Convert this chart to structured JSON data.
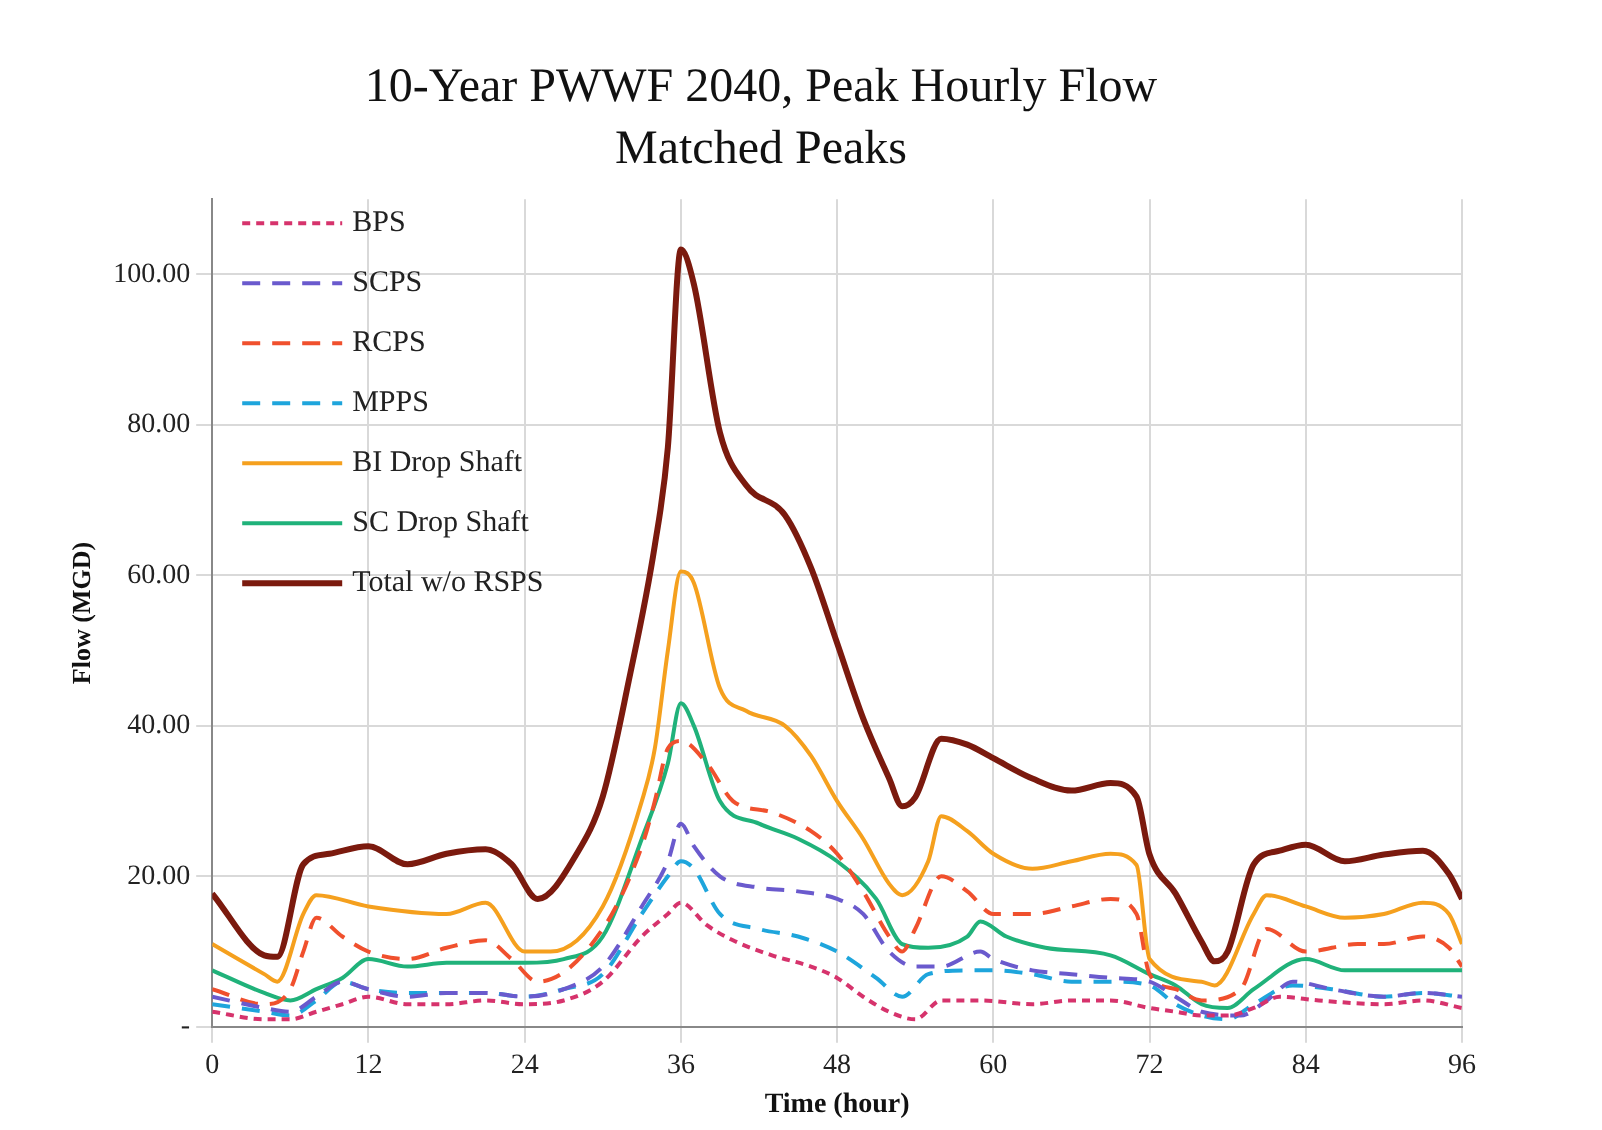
{
  "chart_data": {
    "type": "line",
    "title": "10-Year PWWF 2040, Peak Hourly Flow",
    "subtitle": "Matched Peaks",
    "xlabel": "Time (hour)",
    "ylabel": "Flow (MGD)",
    "xlim": [
      0,
      96
    ],
    "xticks": [
      0,
      12,
      24,
      36,
      48,
      60,
      72,
      84,
      96
    ],
    "ylim": [
      0,
      110
    ],
    "yticks": [
      {
        "value": 0,
        "label": "-"
      },
      {
        "value": 20,
        "label": "20.00"
      },
      {
        "value": 40,
        "label": "40.00"
      },
      {
        "value": 60,
        "label": "60.00"
      },
      {
        "value": 80,
        "label": "80.00"
      },
      {
        "value": 100,
        "label": "100.00"
      }
    ],
    "grid": true,
    "legend": "top left",
    "series": [
      {
        "name": "BPS",
        "color": "#d6336c",
        "line_style": "dotted",
        "x": [
          0,
          4,
          6,
          8,
          10,
          12,
          15,
          18,
          21,
          24,
          27,
          30,
          33,
          35,
          36,
          38,
          40,
          43,
          46,
          48,
          50,
          52,
          54,
          56,
          59,
          63,
          66,
          69,
          72,
          74,
          76,
          78,
          80,
          82,
          85,
          90,
          93,
          96
        ],
        "values": [
          2,
          1,
          1,
          2,
          3,
          4,
          3,
          3,
          3.5,
          3,
          3.5,
          6,
          12,
          15,
          16.5,
          13.5,
          11.5,
          9.5,
          8,
          6.5,
          4,
          2,
          1,
          3.5,
          3.5,
          3,
          3.5,
          3.5,
          2.5,
          2,
          1.5,
          1.5,
          2.5,
          4,
          3.5,
          3,
          3.5,
          2.5
        ]
      },
      {
        "name": "SCPS",
        "color": "#6a5acd",
        "line_style": "dashed",
        "x": [
          0,
          4,
          6,
          8,
          10,
          12,
          15,
          18,
          21,
          24,
          27,
          30,
          33,
          35,
          36,
          37,
          39,
          42,
          45,
          48,
          50,
          52,
          54,
          56,
          59,
          60,
          63,
          66,
          69,
          72,
          74,
          76,
          79,
          81,
          83,
          86,
          90,
          93,
          96
        ],
        "values": [
          4,
          2.5,
          2,
          4,
          6,
          5,
          4,
          4.5,
          4.5,
          4,
          5,
          8,
          16,
          22,
          27,
          24,
          20,
          18.5,
          18,
          17,
          15,
          10,
          8,
          8,
          10,
          9,
          7.5,
          7,
          6.5,
          6,
          4,
          2,
          1.5,
          3.5,
          6,
          5,
          4,
          4.5,
          4
        ]
      },
      {
        "name": "RCPS",
        "color": "#f0502d",
        "line_style": "dashed",
        "x": [
          0,
          4,
          6,
          7,
          8,
          10,
          12,
          15,
          18,
          21,
          23,
          25,
          30,
          33,
          34,
          35,
          36,
          38,
          40,
          43,
          46,
          48,
          50,
          52,
          53,
          54,
          56,
          58,
          60,
          63,
          66,
          69,
          71,
          72,
          74,
          76,
          79,
          81,
          84,
          88,
          90,
          93,
          95,
          96
        ],
        "values": [
          5,
          3,
          5,
          10,
          14.5,
          12,
          10,
          9,
          10.5,
          11.5,
          9,
          6,
          13,
          24,
          30,
          37,
          38,
          35,
          30,
          28.5,
          26,
          23,
          18,
          12,
          10,
          13,
          20,
          18,
          15,
          15,
          16,
          17,
          15,
          7,
          5,
          3.5,
          5,
          13,
          10,
          11,
          11,
          12,
          10.5,
          8
        ]
      },
      {
        "name": "MPPS",
        "color": "#1ea5dc",
        "line_style": "dashed",
        "x": [
          0,
          4,
          6,
          8,
          10,
          12,
          15,
          18,
          21,
          24,
          27,
          30,
          33,
          35,
          36,
          37,
          39,
          42,
          45,
          48,
          51,
          53,
          55,
          58,
          60,
          63,
          66,
          69,
          72,
          74,
          76,
          78,
          80,
          83,
          86,
          90,
          93,
          96
        ],
        "values": [
          3,
          2,
          1.5,
          3.5,
          6,
          5,
          4.5,
          4.5,
          4.5,
          4,
          5,
          7,
          15,
          20,
          22,
          21,
          15,
          13,
          12,
          10,
          6.5,
          4,
          7,
          7.5,
          7.5,
          7,
          6,
          6,
          5.5,
          3,
          1.5,
          1,
          3,
          5.5,
          5,
          4,
          4.5,
          4
        ]
      },
      {
        "name": "BI Drop Shaft",
        "color": "#f5a01e",
        "line_style": "solid",
        "x": [
          0,
          4,
          5,
          7,
          8,
          12,
          18,
          21,
          24,
          26,
          30,
          33,
          34,
          35,
          36,
          37,
          39,
          41,
          44,
          46,
          48,
          50,
          52,
          53,
          55,
          56,
          58,
          60,
          63,
          66,
          69,
          71,
          72,
          76,
          77,
          80,
          81,
          84,
          87,
          90,
          93,
          95,
          96
        ],
        "values": [
          11,
          7,
          6,
          15,
          17.5,
          16,
          15,
          16.5,
          10,
          10,
          16,
          30,
          37,
          50,
          60.5,
          59,
          45,
          42,
          40,
          36,
          30,
          25,
          19,
          17.5,
          22,
          28,
          26,
          23,
          21,
          22,
          23,
          21.5,
          9,
          6,
          5.5,
          15,
          17.5,
          16,
          14.5,
          15,
          16.5,
          15,
          11
        ]
      },
      {
        "name": "SC Drop Shaft",
        "color": "#20b27a",
        "line_style": "solid",
        "x": [
          0,
          4,
          6,
          8,
          10,
          12,
          15,
          18,
          24,
          27,
          30,
          33,
          35,
          36,
          37,
          39,
          42,
          45,
          48,
          51,
          53,
          55,
          58,
          59,
          61,
          64,
          69,
          72,
          74,
          76,
          78,
          80,
          84,
          87,
          90,
          93,
          96
        ],
        "values": [
          7.5,
          4.5,
          3.5,
          5,
          6.5,
          9,
          8,
          8.5,
          8.5,
          9,
          12,
          25,
          35,
          43,
          40,
          30,
          27,
          25,
          22,
          17,
          11,
          10.5,
          12,
          14,
          12,
          10.5,
          9.5,
          7,
          5.5,
          3,
          2.5,
          5,
          9,
          7.5,
          7.5,
          7.5,
          7.5
        ]
      },
      {
        "name": "Total w/o RSPS",
        "color": "#7b1a0e",
        "line_style": "solid",
        "x": [
          0,
          4,
          5,
          7,
          9,
          12,
          15,
          18,
          21,
          23,
          25,
          28,
          30,
          32,
          34,
          35,
          36,
          37,
          39,
          41,
          44,
          46,
          48,
          50,
          52,
          53,
          54,
          56,
          58,
          60,
          63,
          66,
          69,
          71,
          72,
          74,
          76,
          77,
          78,
          80,
          82,
          84,
          87,
          90,
          93,
          95,
          96
        ],
        "values": [
          17.7,
          9.5,
          9.3,
          21.6,
          23,
          24,
          21.6,
          23,
          23.6,
          21.6,
          17,
          23,
          30.6,
          46,
          64,
          77,
          103.3,
          98.7,
          79,
          72,
          68,
          61,
          51,
          41,
          33,
          29.3,
          30.5,
          38.3,
          37.5,
          35.7,
          33,
          31.4,
          32.4,
          30.6,
          22.9,
          17.7,
          11.3,
          8.7,
          10,
          21.6,
          23.4,
          24.2,
          22,
          22.9,
          23.4,
          20.3,
          17
        ]
      }
    ]
  }
}
